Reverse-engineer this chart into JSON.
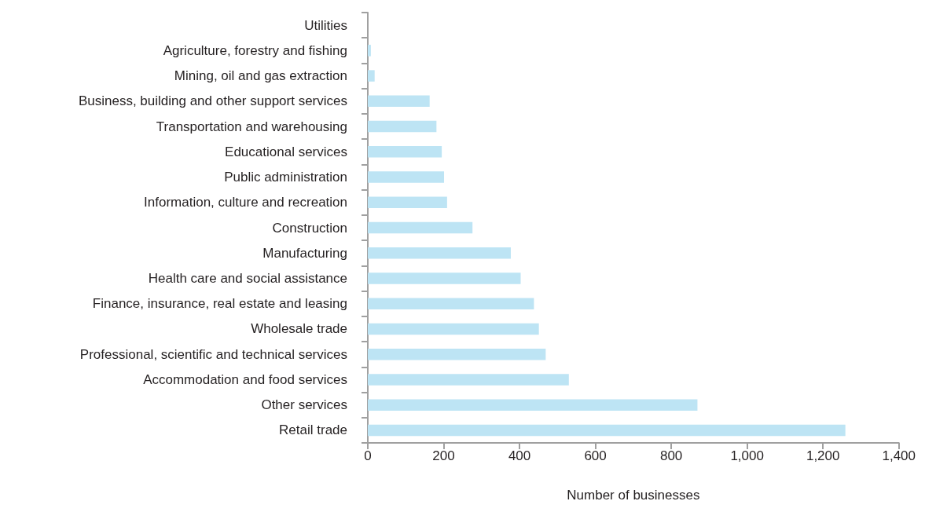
{
  "chart_data": {
    "type": "bar",
    "orientation": "horizontal",
    "xlabel": "Number of businesses",
    "categories": [
      "Utilities",
      "Agriculture, forestry and fishing",
      "Mining, oil and gas extraction",
      "Business, building and other support services",
      "Transportation and warehousing",
      "Educational services",
      "Public administration",
      "Information, culture and recreation",
      "Construction",
      "Manufacturing",
      "Health care and social assistance",
      "Finance, insurance, real estate and leasing",
      "Wholesale trade",
      "Professional, scientific and technical services",
      "Accommodation and food services",
      "Other services",
      "Retail trade"
    ],
    "values": [
      0,
      8,
      18,
      163,
      181,
      195,
      201,
      209,
      276,
      377,
      403,
      438,
      451,
      469,
      530,
      869,
      1259
    ],
    "color": "#bde4f4",
    "xlim": [
      0,
      1400
    ],
    "xticks": [
      {
        "value": 0,
        "label": "0"
      },
      {
        "value": 200,
        "label": "200"
      },
      {
        "value": 400,
        "label": "400"
      },
      {
        "value": 600,
        "label": "600"
      },
      {
        "value": 800,
        "label": "800"
      },
      {
        "value": 1000,
        "label": "1,000"
      },
      {
        "value": 1200,
        "label": "1,200"
      },
      {
        "value": 1400,
        "label": "1,400"
      }
    ],
    "grid": false
  }
}
